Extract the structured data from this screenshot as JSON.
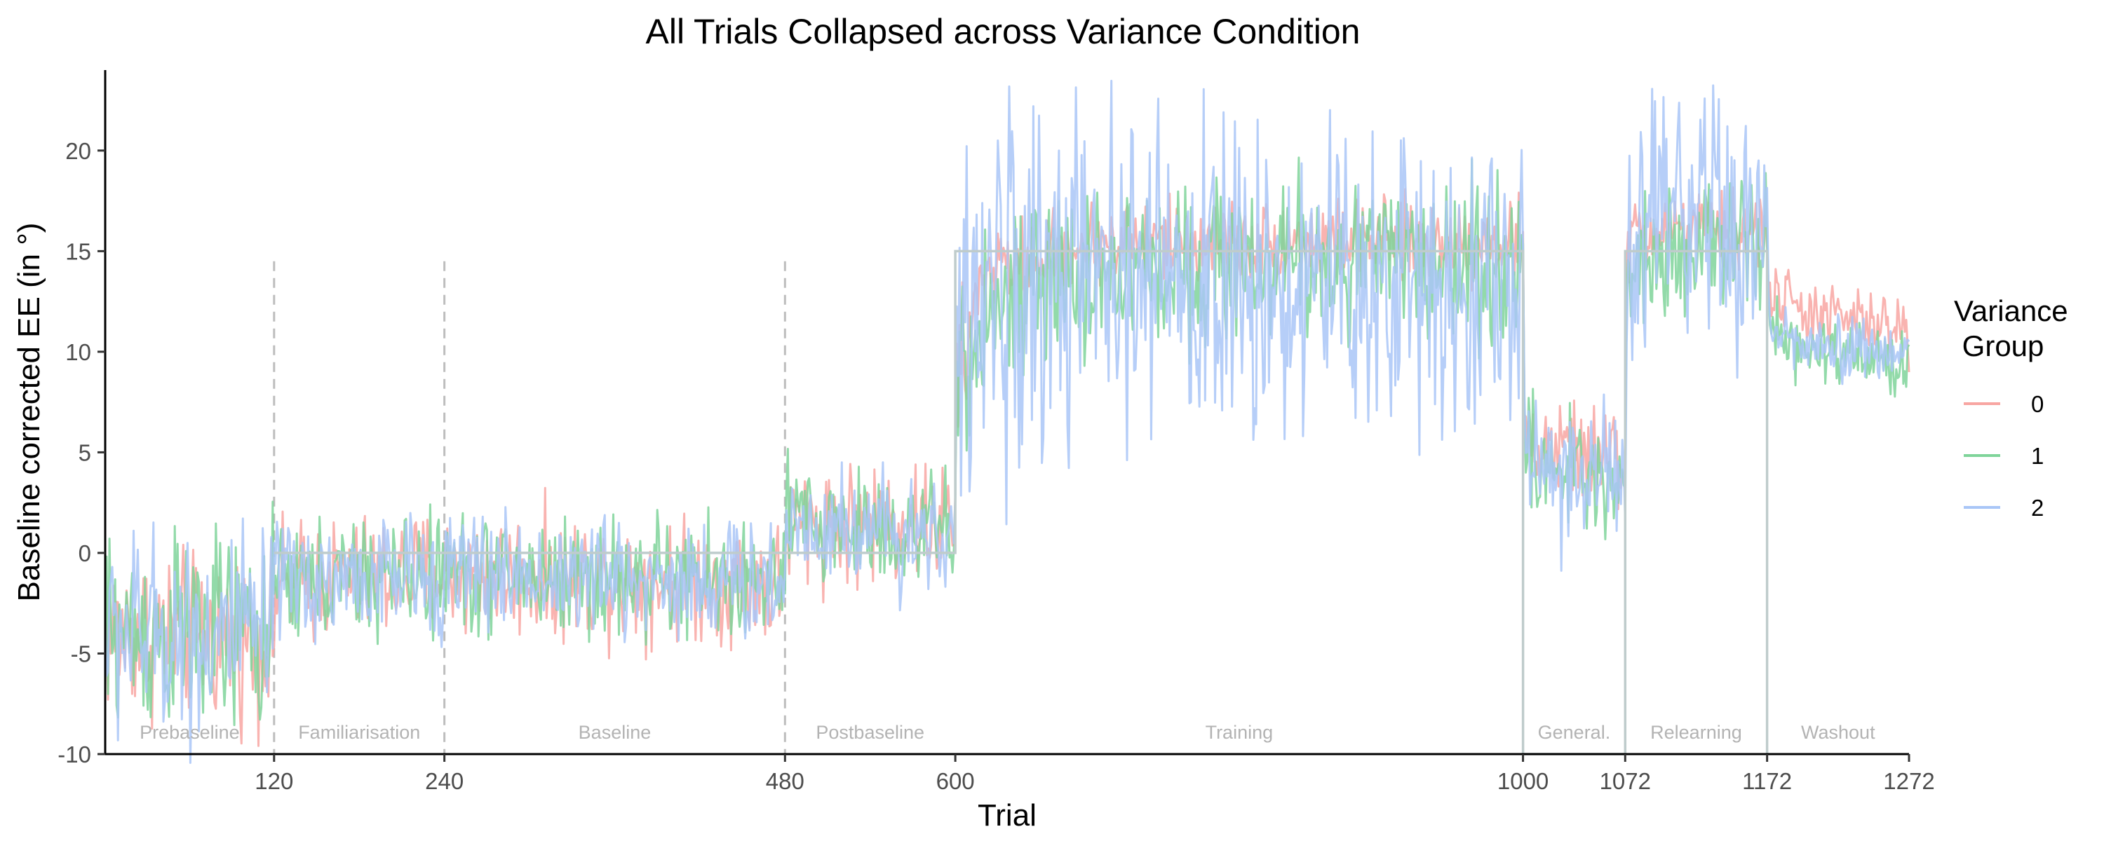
{
  "chart_data": {
    "type": "line",
    "title": "All Trials Collapsed across Variance Condition",
    "xlabel": "Trial",
    "ylabel": "Baseline corrected EE (in °)",
    "xlim": [
      1,
      1272
    ],
    "ylim": [
      -10,
      24
    ],
    "x_ticks": [
      120,
      240,
      480,
      600,
      1000,
      1072,
      1172,
      1272
    ],
    "y_ticks": [
      -10,
      -5,
      0,
      5,
      10,
      15,
      20
    ],
    "grid": false,
    "legend": {
      "title_line1": "Variance",
      "title_line2": " Group",
      "placement": "right",
      "entries": [
        {
          "name": "0",
          "color": "#f8a6a2"
        },
        {
          "name": "1",
          "color": "#7fd49a"
        },
        {
          "name": "2",
          "color": "#a9c6f7"
        }
      ]
    },
    "phase_boundaries": [
      120,
      240,
      480
    ],
    "phases": [
      {
        "label": "Prebaseline",
        "start": 1,
        "end": 120
      },
      {
        "label": "Familiarisation",
        "start": 120,
        "end": 240
      },
      {
        "label": "Baseline",
        "start": 240,
        "end": 480
      },
      {
        "label": "Postbaseline",
        "start": 480,
        "end": 600
      },
      {
        "label": "Training",
        "start": 600,
        "end": 1000
      },
      {
        "label": "General.",
        "start": 1000,
        "end": 1072
      },
      {
        "label": "Relearning",
        "start": 1072,
        "end": 1172
      },
      {
        "label": "Washout",
        "start": 1172,
        "end": 1272
      }
    ],
    "perturbation": {
      "color": "#bfcccc",
      "x": [
        120,
        600,
        600,
        1000,
        1000,
        1072,
        1072,
        1172,
        1172
      ],
      "y": [
        0,
        0,
        15,
        15,
        -10,
        -10,
        15,
        15,
        -10
      ]
    },
    "series_envelopes": [
      {
        "name": "0",
        "x": [
          1,
          120,
          121,
          240,
          480,
          481,
          600,
          601,
          620,
          700,
          800,
          900,
          1000,
          1001,
          1072,
          1073,
          1090,
          1172,
          1173,
          1200,
          1272
        ],
        "mean": [
          -4,
          -4.2,
          -1.5,
          -1,
          -1.5,
          1.5,
          1.5,
          8,
          14,
          15.5,
          15.5,
          15.5,
          15.5,
          5.5,
          4.5,
          15,
          16,
          16,
          13,
          12,
          11
        ],
        "amplitude": [
          2,
          2,
          1.5,
          1.5,
          1.5,
          1.5,
          1.5,
          2,
          1,
          1,
          1,
          1,
          1,
          1.2,
          1.2,
          1.2,
          1,
          1,
          0.8,
          0.8,
          0.8
        ]
      },
      {
        "name": "1",
        "x": [
          1,
          120,
          121,
          240,
          480,
          481,
          600,
          601,
          620,
          700,
          800,
          900,
          1000,
          1001,
          1072,
          1073,
          1090,
          1172,
          1173,
          1200,
          1272
        ],
        "mean": [
          -4,
          -4,
          -1.5,
          -1,
          -1.5,
          1.5,
          1,
          7,
          12,
          14,
          14.5,
          14.5,
          14.5,
          4.5,
          3.5,
          14,
          15,
          15.5,
          11,
          10,
          9.5
        ],
        "amplitude": [
          2.5,
          2.5,
          1.5,
          1.5,
          1.5,
          1.5,
          1.5,
          2.5,
          2,
          2,
          2,
          2,
          2,
          1.5,
          1.5,
          1.5,
          1.5,
          1.5,
          0.8,
          0.8,
          0.8
        ]
      },
      {
        "name": "2",
        "x": [
          1,
          120,
          121,
          240,
          480,
          481,
          600,
          601,
          620,
          700,
          800,
          900,
          1000,
          1001,
          1072,
          1073,
          1090,
          1172,
          1173,
          1200,
          1272
        ],
        "mean": [
          -4,
          -4,
          -1.5,
          -1,
          -1.5,
          1.5,
          1,
          9,
          13,
          13.5,
          13.5,
          13.5,
          13.5,
          4.5,
          3.5,
          14,
          16,
          15.5,
          11.5,
          10,
          10
        ],
        "amplitude": [
          2.5,
          2.5,
          1.5,
          1.5,
          1.5,
          1.5,
          1.5,
          4,
          4.5,
          4,
          4,
          4,
          4,
          1.8,
          1.8,
          3.5,
          4,
          3,
          0.8,
          0.8,
          0.8
        ]
      }
    ]
  }
}
